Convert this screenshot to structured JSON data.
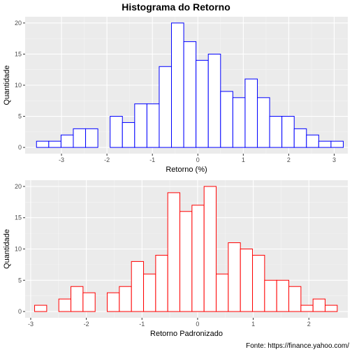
{
  "title": "Histograma do Retorno",
  "caption": "Fonte: https://finance.yahoo.com/",
  "chart_data": [
    {
      "type": "bar",
      "title": "",
      "xlabel": "Retorno (%)",
      "ylabel": "Quantidade",
      "xlim": [
        -3.8,
        3.3
      ],
      "ylim": [
        -1,
        21
      ],
      "xticks": [
        -3,
        -2,
        -1,
        0,
        1,
        2,
        3
      ],
      "yticks": [
        0,
        5,
        10,
        15,
        20
      ],
      "grid": true,
      "bar_color": "#0000ff",
      "bin_start": -3.55,
      "bin_width": 0.27,
      "counts": [
        1,
        1,
        2,
        3,
        3,
        0,
        5,
        4,
        7,
        7,
        13,
        20,
        17,
        14,
        15,
        9,
        8,
        11,
        8,
        5,
        5,
        3,
        2,
        1,
        1
      ]
    },
    {
      "type": "bar",
      "title": "",
      "xlabel": "Retorno Padronizado",
      "ylabel": "Quantidade",
      "xlim": [
        -3.1,
        2.7
      ],
      "ylim": [
        -1,
        21
      ],
      "xticks": [
        -3,
        -2,
        -1,
        0,
        1,
        2
      ],
      "yticks": [
        0,
        5,
        10,
        15,
        20
      ],
      "grid": true,
      "bar_color": "#ff0000",
      "bin_start": -2.93,
      "bin_width": 0.2176,
      "counts": [
        1,
        0,
        2,
        4,
        3,
        0,
        3,
        4,
        8,
        6,
        9,
        19,
        16,
        17,
        20,
        6,
        11,
        10,
        9,
        5,
        5,
        4,
        1,
        2,
        1
      ]
    }
  ]
}
